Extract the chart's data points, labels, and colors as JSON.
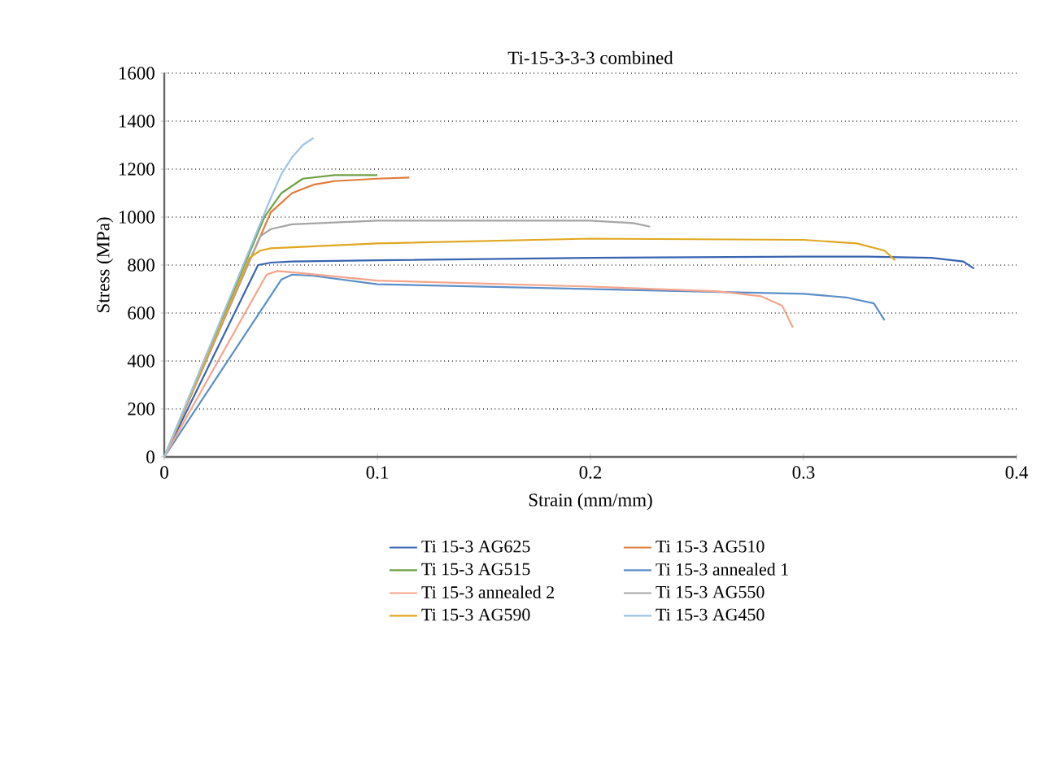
{
  "chart_data": {
    "type": "line",
    "title": "Ti-15-3-3-3 combined",
    "xlabel": "Strain (mm/mm)",
    "ylabel": "Stress (MPa)",
    "xlim": [
      0,
      0.4
    ],
    "ylim": [
      0,
      1600
    ],
    "xticks": [
      0,
      0.1,
      0.2,
      0.3,
      0.4
    ],
    "yticks": [
      0,
      200,
      400,
      600,
      800,
      1000,
      1200,
      1400,
      1600
    ],
    "grid": "y",
    "legend": "bottom",
    "line_style": "solid",
    "marker": "none",
    "series": [
      {
        "name": "Ti 15-3 AG625",
        "color": "#3864b0",
        "x": [
          0,
          0.044,
          0.05,
          0.06,
          0.1,
          0.2,
          0.3,
          0.33,
          0.36,
          0.375,
          0.38
        ],
        "values": [
          0,
          800,
          810,
          815,
          820,
          830,
          835,
          835,
          830,
          815,
          785
        ]
      },
      {
        "name": "Ti 15-3 AG510",
        "color": "#e07a3a",
        "x": [
          0,
          0.05,
          0.06,
          0.07,
          0.08,
          0.1,
          0.115
        ],
        "values": [
          0,
          1020,
          1100,
          1135,
          1150,
          1160,
          1165
        ]
      },
      {
        "name": "Ti 15-3 AG515",
        "color": "#70a046",
        "x": [
          0,
          0.047,
          0.055,
          0.065,
          0.08,
          0.1
        ],
        "values": [
          0,
          1000,
          1100,
          1160,
          1175,
          1175
        ]
      },
      {
        "name": "Ti 15-3 annealed 1",
        "color": "#5b8fc9",
        "x": [
          0,
          0.055,
          0.06,
          0.07,
          0.1,
          0.2,
          0.3,
          0.32,
          0.333,
          0.338
        ],
        "values": [
          0,
          740,
          760,
          755,
          720,
          700,
          680,
          665,
          640,
          570
        ]
      },
      {
        "name": "Ti 15-3 annealed 2",
        "color": "#f4a58a",
        "x": [
          0,
          0.048,
          0.053,
          0.06,
          0.1,
          0.2,
          0.26,
          0.28,
          0.29,
          0.295
        ],
        "values": [
          0,
          760,
          775,
          770,
          735,
          710,
          690,
          670,
          630,
          540
        ]
      },
      {
        "name": "Ti 15-3 AG550",
        "color": "#a5a5a5",
        "x": [
          0,
          0.045,
          0.05,
          0.06,
          0.1,
          0.2,
          0.22,
          0.228
        ],
        "values": [
          0,
          920,
          950,
          970,
          985,
          985,
          975,
          960
        ]
      },
      {
        "name": "Ti 15-3 AG590",
        "color": "#e0a820",
        "x": [
          0,
          0.04,
          0.045,
          0.05,
          0.1,
          0.2,
          0.3,
          0.325,
          0.338,
          0.343
        ],
        "values": [
          0,
          830,
          860,
          870,
          890,
          910,
          905,
          890,
          860,
          820
        ]
      },
      {
        "name": "Ti 15-3 AG450",
        "color": "#9dc3e6",
        "x": [
          0,
          0.05,
          0.055,
          0.06,
          0.065,
          0.07
        ],
        "values": [
          0,
          1080,
          1180,
          1250,
          1300,
          1330
        ]
      }
    ]
  }
}
